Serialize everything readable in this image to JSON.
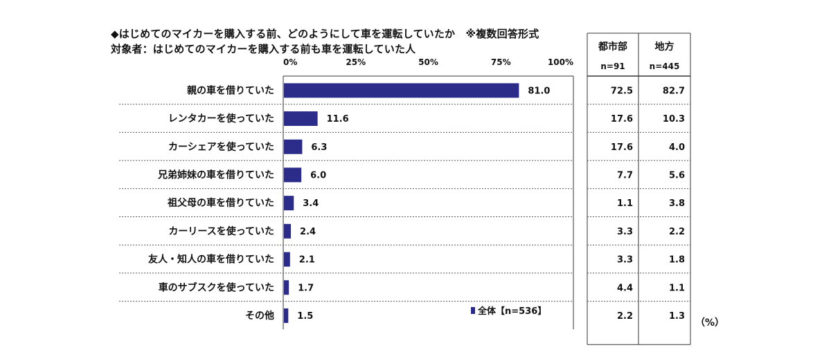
{
  "title_line1": "◆はじめてのマイカーを購入する前、どのようにして車を運転していたか　※複数回答形式",
  "title_line2": "対象者：はじめてのマイカーを購入する前も車を運転していた人",
  "unit_label": "（%）",
  "colors": {
    "bar": "#2b2b8a",
    "grid": "#555555",
    "border": "#333333"
  },
  "chart_data": {
    "type": "bar",
    "orientation": "horizontal",
    "categories": [
      "親の車を借りていた",
      "レンタカーを使っていた",
      "カーシェアを使っていた",
      "兄弟姉妹の車を借りていた",
      "祖父母の車を借りていた",
      "カーリースを使っていた",
      "友人・知人の車を借りていた",
      "車のサブスクを使っていた",
      "その他"
    ],
    "series": [
      {
        "name": "全体【n=536】",
        "values": [
          81.0,
          11.6,
          6.3,
          6.0,
          3.4,
          2.4,
          2.1,
          1.7,
          1.5
        ]
      }
    ],
    "value_labels": [
      "81.0",
      "11.6",
      "6.3",
      "6.0",
      "3.4",
      "2.4",
      "2.1",
      "1.7",
      "1.5"
    ],
    "xlim": [
      0,
      100
    ],
    "x_ticks": [
      "0%",
      "25%",
      "50%",
      "75%",
      "100%"
    ],
    "legend_position": "bottom-right",
    "grid": false
  },
  "table": {
    "columns": [
      {
        "header": "都市部",
        "n": "n=91",
        "values": [
          "72.5",
          "17.6",
          "17.6",
          "7.7",
          "1.1",
          "3.3",
          "3.3",
          "4.4",
          "2.2"
        ]
      },
      {
        "header": "地方",
        "n": "n=445",
        "values": [
          "82.7",
          "10.3",
          "4.0",
          "5.6",
          "3.8",
          "2.2",
          "1.8",
          "1.1",
          "1.3"
        ]
      }
    ]
  }
}
